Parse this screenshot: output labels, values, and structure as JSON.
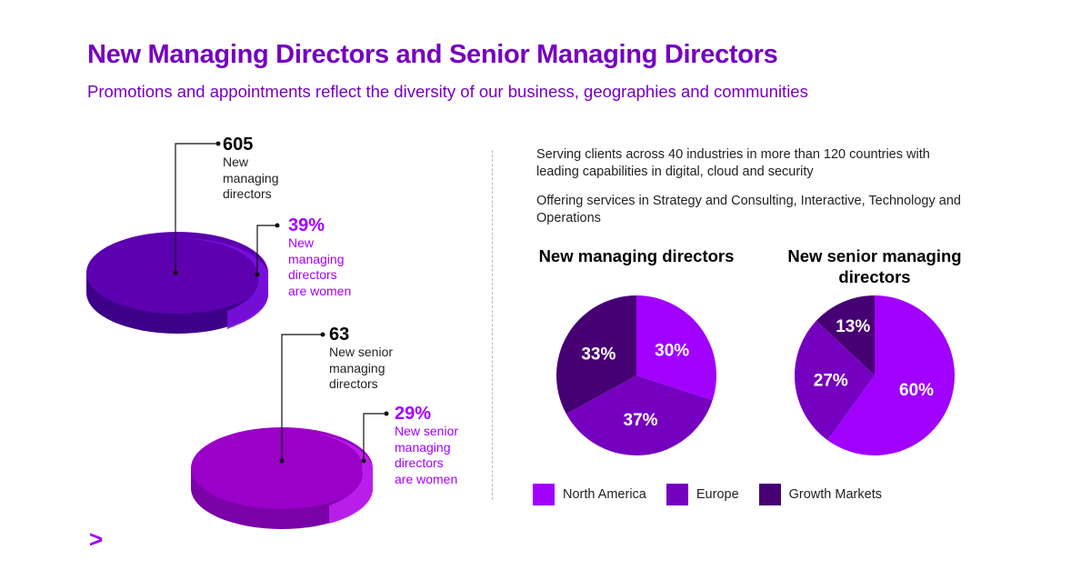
{
  "title": "New Managing Directors and Senior Managing Directors",
  "subtitle": "Promotions and appointments reflect the diversity of our business, geographies and communities",
  "left": {
    "md": {
      "count": "605",
      "label": [
        "New",
        "managing",
        "directors"
      ],
      "women_pct": "39%",
      "women_label": [
        "New",
        "managing",
        "directors",
        "are women"
      ]
    },
    "smd": {
      "count": "63",
      "label": [
        "New senior",
        "managing",
        "directors"
      ],
      "women_pct": "29%",
      "women_label": [
        "New senior",
        "managing",
        "directors",
        "are women"
      ]
    }
  },
  "intro": [
    "Serving clients across 40 industries in more than 120 countries with leading capabilities in digital, cloud and security",
    "Offering services in Strategy and Consulting, Interactive, Technology and Operations"
  ],
  "colors": {
    "north_america": "#a100ff",
    "europe": "#7500c0",
    "growth_markets": "#460073",
    "disc_md": "#5c00b0",
    "disc_smd": "#9a00c8"
  },
  "chart_data": [
    {
      "type": "pie",
      "title": "New managing directors",
      "categories": [
        "North America",
        "Europe",
        "Growth Markets"
      ],
      "values": [
        30,
        37,
        33
      ],
      "labels": [
        "30%",
        "37%",
        "33%"
      ]
    },
    {
      "type": "pie",
      "title": "New senior managing directors",
      "categories": [
        "North America",
        "Europe",
        "Growth Markets"
      ],
      "values": [
        60,
        27,
        13
      ],
      "labels": [
        "60%",
        "27%",
        "13%"
      ]
    }
  ],
  "legend": [
    "North America",
    "Europe",
    "Growth Markets"
  ],
  "logo": ">"
}
